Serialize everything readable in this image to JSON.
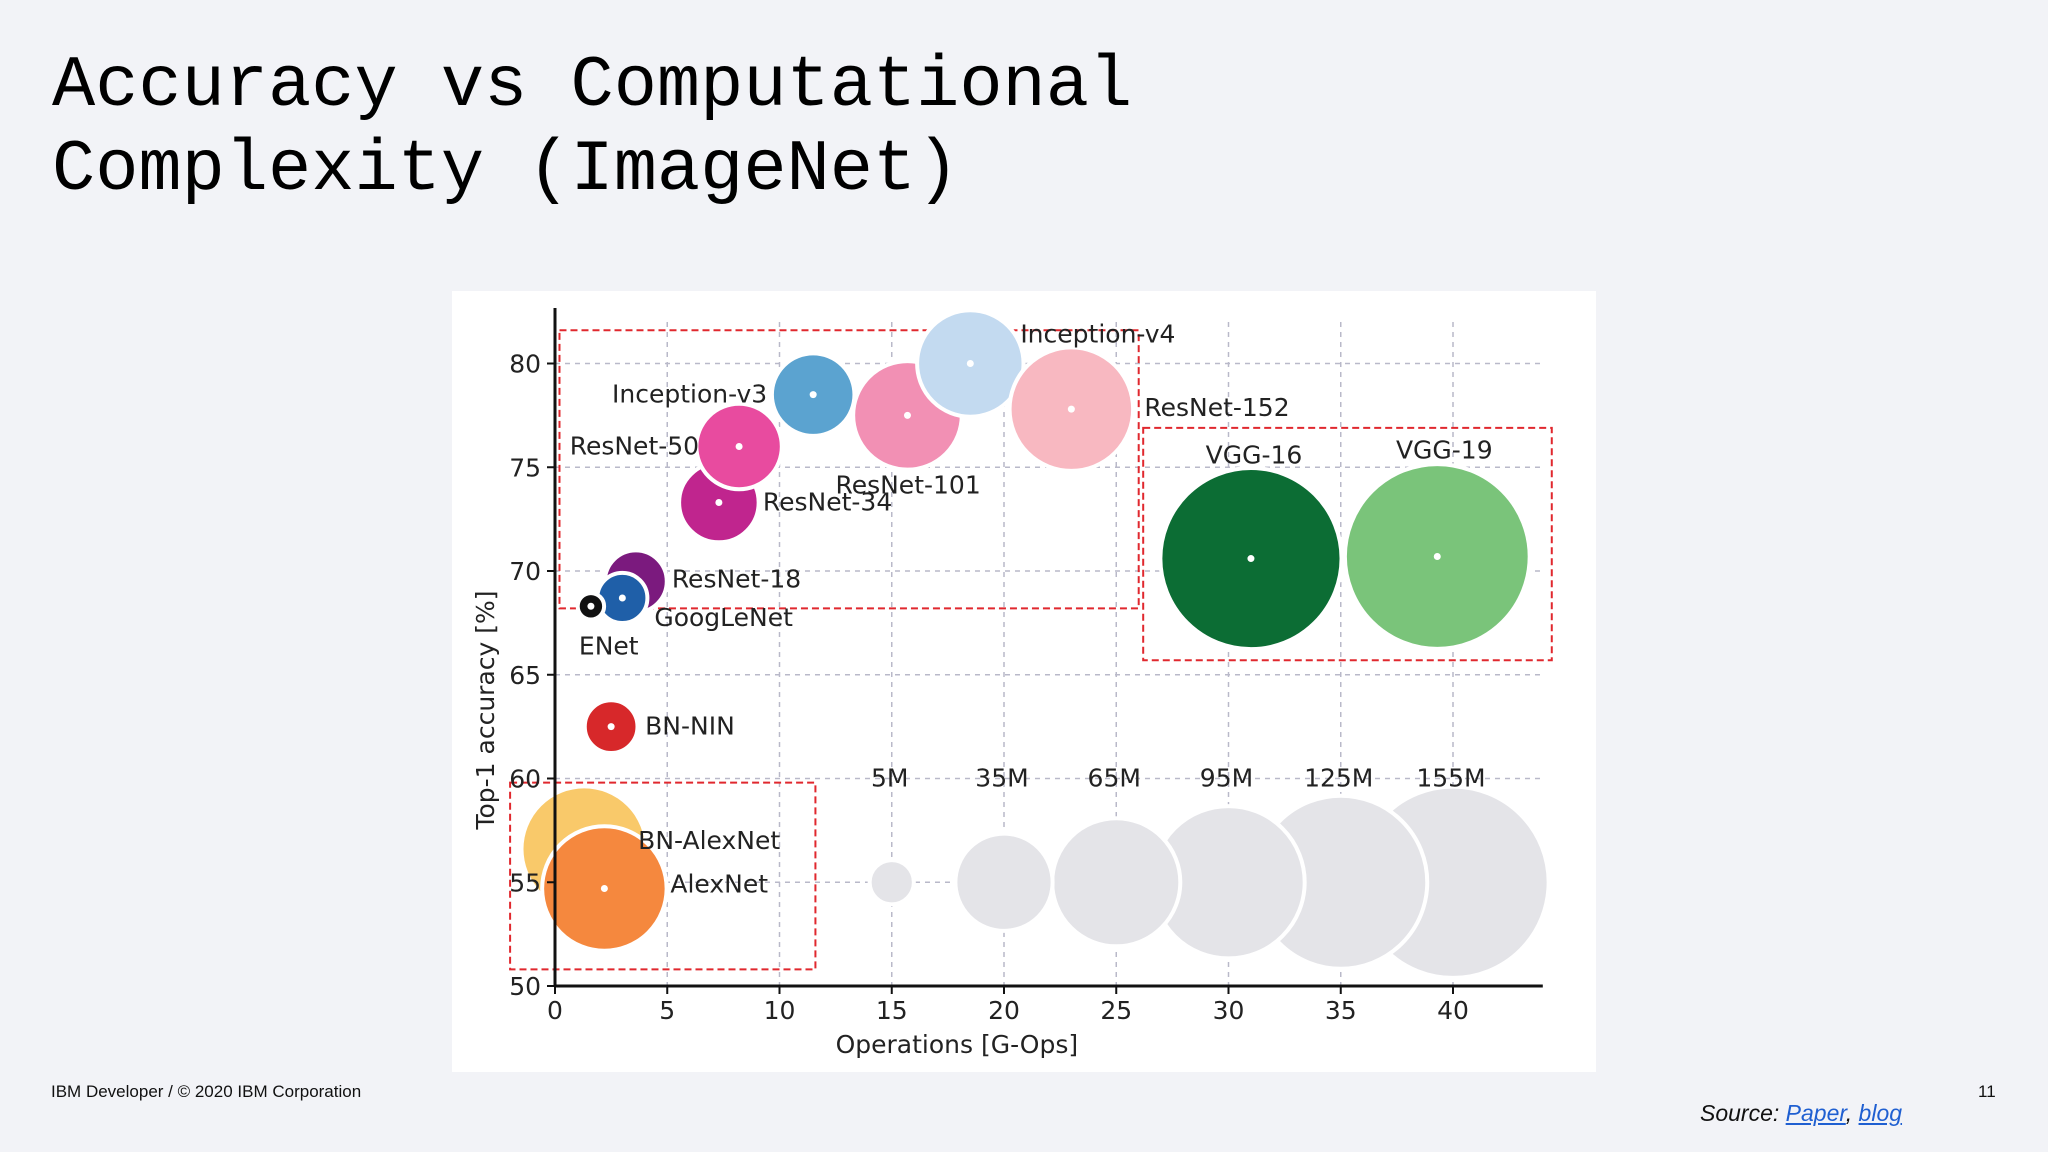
{
  "slide": {
    "title_line1": "Accuracy vs Computational",
    "title_line2": "Complexity (ImageNet)",
    "footer": "IBM Developer / © 2020 IBM Corporation",
    "page_number": "11",
    "source_label": "Source:",
    "source_link1": "Paper",
    "source_separator": ",",
    "source_link2": "blog"
  },
  "chart_data": {
    "type": "scatter",
    "title": "",
    "xlabel": "Operations [G-Ops]",
    "ylabel": "Top-1 accuracy [%]",
    "xlim": [
      0,
      44
    ],
    "ylim": [
      50,
      82
    ],
    "xticks": [
      0,
      5,
      10,
      15,
      20,
      25,
      30,
      35,
      40
    ],
    "yticks": [
      50,
      55,
      60,
      65,
      70,
      75,
      80
    ],
    "grid": true,
    "points": [
      {
        "name": "BN-AlexNet",
        "x": 1.3,
        "y": 56.6,
        "params_m": 62,
        "color": "#f9c96a"
      },
      {
        "name": "AlexNet",
        "x": 2.2,
        "y": 54.7,
        "params_m": 61,
        "color": "#f5883e"
      },
      {
        "name": "BN-NIN",
        "x": 2.5,
        "y": 62.5,
        "params_m": 8,
        "color": "#d7282a"
      },
      {
        "name": "ResNet-18",
        "x": 3.6,
        "y": 69.5,
        "params_m": 12,
        "color": "#7b1a7e"
      },
      {
        "name": "GoogLeNet",
        "x": 3.0,
        "y": 68.7,
        "params_m": 7,
        "color": "#1f5fa8"
      },
      {
        "name": "ENet",
        "x": 1.6,
        "y": 68.3,
        "params_m": 1,
        "color": "#111111"
      },
      {
        "name": "ResNet-34",
        "x": 7.3,
        "y": 73.3,
        "params_m": 22,
        "color": "#c0258e"
      },
      {
        "name": "ResNet-50",
        "x": 8.2,
        "y": 76.0,
        "params_m": 26,
        "color": "#e84b9f"
      },
      {
        "name": "Inception-v3",
        "x": 11.5,
        "y": 78.5,
        "params_m": 24,
        "color": "#5ba3d0"
      },
      {
        "name": "ResNet-101",
        "x": 15.7,
        "y": 77.5,
        "params_m": 45,
        "color": "#f290b4"
      },
      {
        "name": "Inception-v4",
        "x": 18.5,
        "y": 80.0,
        "params_m": 43,
        "color": "#c3daf0"
      },
      {
        "name": "ResNet-152",
        "x": 23.0,
        "y": 77.8,
        "params_m": 60,
        "color": "#f8b8c1"
      },
      {
        "name": "VGG-16",
        "x": 31.0,
        "y": 70.6,
        "params_m": 138,
        "color": "#0c6d34"
      },
      {
        "name": "VGG-19",
        "x": 39.3,
        "y": 70.7,
        "params_m": 144,
        "color": "#7ac47a"
      }
    ],
    "size_legend": [
      {
        "label": "5M",
        "x": 15,
        "params_m": 5
      },
      {
        "label": "35M",
        "x": 20,
        "params_m": 35
      },
      {
        "label": "65M",
        "x": 25,
        "params_m": 65
      },
      {
        "label": "95M",
        "x": 30,
        "params_m": 95
      },
      {
        "label": "125M",
        "x": 35,
        "params_m": 125
      },
      {
        "label": "155M",
        "x": 40,
        "params_m": 155
      }
    ],
    "size_legend_y": 55,
    "size_legend_color": "#e4e4e8",
    "highlight_boxes_color": "#e0282e"
  }
}
